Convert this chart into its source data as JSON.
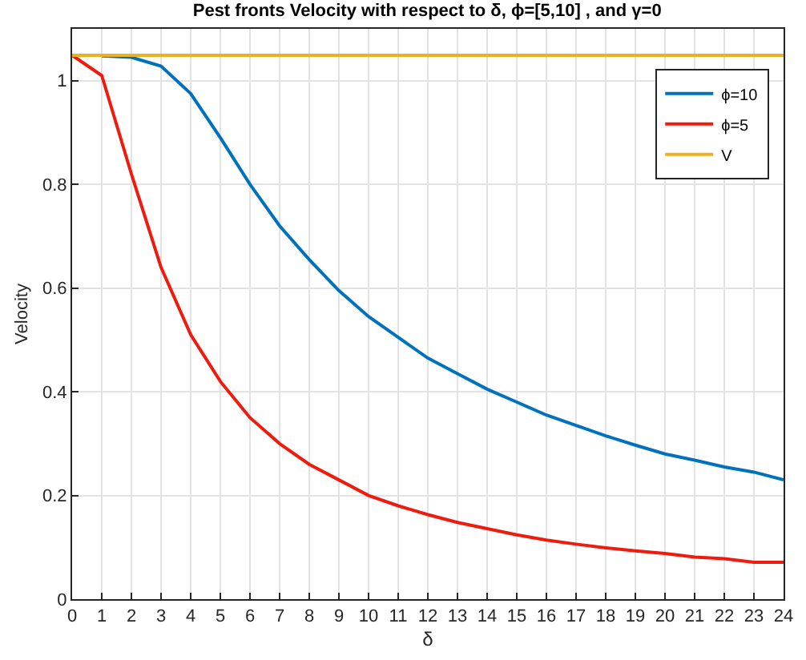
{
  "chart_data": {
    "type": "line",
    "title": "Pest fronts Velocity with respect to δ, ϕ=[5,10] , and γ=0",
    "xlabel": "δ",
    "ylabel": "Velocity",
    "x": [
      0,
      1,
      2,
      3,
      4,
      5,
      6,
      7,
      8,
      9,
      10,
      11,
      12,
      13,
      14,
      15,
      16,
      17,
      18,
      19,
      20,
      21,
      22,
      23,
      24
    ],
    "series": [
      {
        "name": "ϕ=10",
        "color": "#0072bd",
        "values": [
          null,
          1.048,
          1.045,
          1.028,
          0.975,
          0.89,
          0.8,
          0.72,
          0.655,
          0.595,
          0.545,
          0.505,
          0.465,
          0.435,
          0.405,
          0.38,
          0.355,
          0.335,
          0.315,
          0.297,
          0.28,
          0.268,
          0.255,
          0.245,
          0.23
        ]
      },
      {
        "name": "ϕ=5",
        "color": "#ee1c0e",
        "values": [
          1.049,
          1.01,
          0.82,
          0.64,
          0.51,
          0.42,
          0.35,
          0.3,
          0.26,
          0.23,
          0.2,
          0.18,
          0.163,
          0.148,
          0.136,
          0.124,
          0.114,
          0.106,
          0.099,
          0.093,
          0.088,
          0.081,
          0.078,
          0.071,
          0.071
        ]
      },
      {
        "name": "V",
        "color": "#edb120",
        "values": [
          1.049,
          1.049,
          1.049,
          1.049,
          1.049,
          1.049,
          1.049,
          1.049,
          1.049,
          1.049,
          1.049,
          1.049,
          1.049,
          1.049,
          1.049,
          1.049,
          1.049,
          1.049,
          1.049,
          1.049,
          1.049,
          1.049,
          1.049,
          1.049,
          1.049
        ]
      }
    ],
    "xlim": [
      0,
      24
    ],
    "xticks": [
      0,
      1,
      2,
      3,
      4,
      5,
      6,
      7,
      8,
      9,
      10,
      11,
      12,
      13,
      14,
      15,
      16,
      17,
      18,
      19,
      20,
      21,
      22,
      23,
      24
    ],
    "ylim": [
      0,
      1.1
    ],
    "yticks": [
      0,
      0.2,
      0.4,
      0.6,
      0.8,
      1
    ],
    "grid": true,
    "legend": "top right",
    "line_style": "solid",
    "marker": "none"
  }
}
